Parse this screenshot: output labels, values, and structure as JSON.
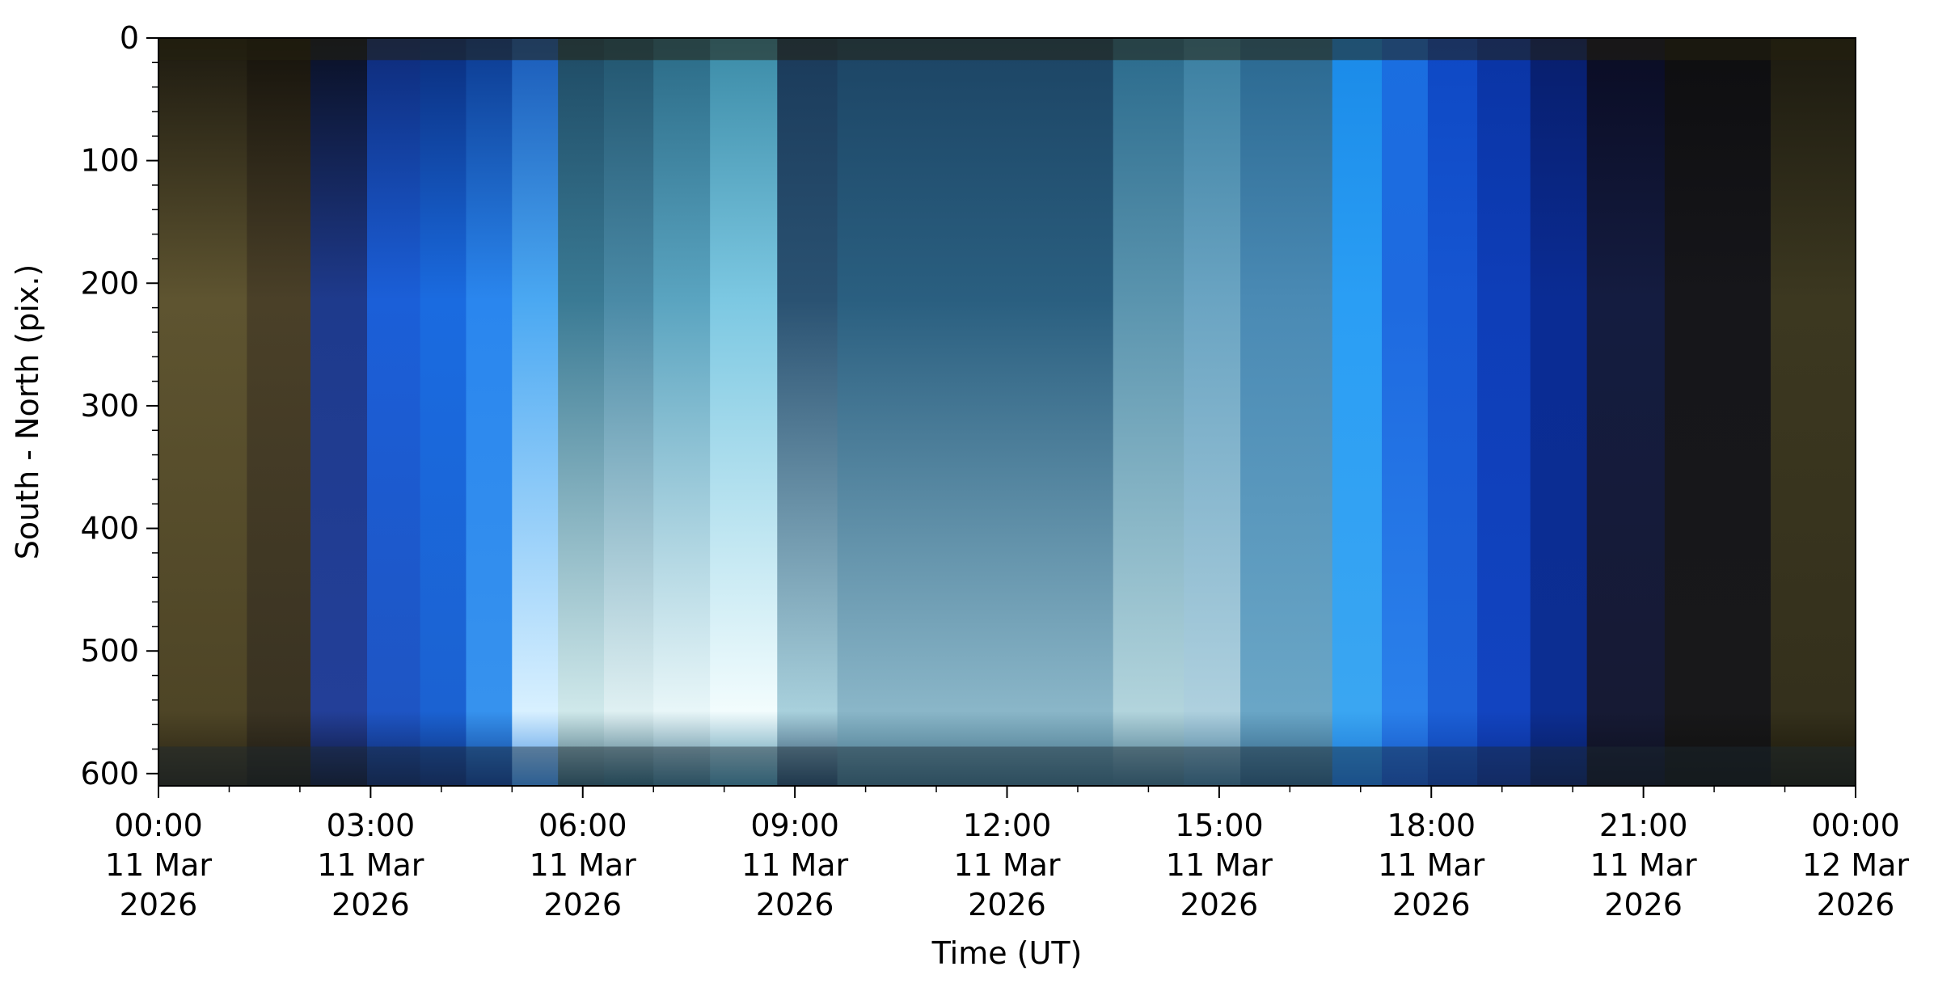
{
  "chart_data": {
    "type": "heatmap",
    "title": "",
    "xlabel": "Time (UT)",
    "ylabel": "South - North (pix.)",
    "x_range_hours_ut": [
      0,
      24
    ],
    "ylim": [
      0,
      610
    ],
    "y_inverted": true,
    "grid": false,
    "legend": "none",
    "x_major_ticks": [
      {
        "hour": 0,
        "time": "00:00",
        "date": "11 Mar",
        "year": "2026"
      },
      {
        "hour": 3,
        "time": "03:00",
        "date": "11 Mar",
        "year": "2026"
      },
      {
        "hour": 6,
        "time": "06:00",
        "date": "11 Mar",
        "year": "2026"
      },
      {
        "hour": 9,
        "time": "09:00",
        "date": "11 Mar",
        "year": "2026"
      },
      {
        "hour": 12,
        "time": "12:00",
        "date": "11 Mar",
        "year": "2026"
      },
      {
        "hour": 15,
        "time": "15:00",
        "date": "11 Mar",
        "year": "2026"
      },
      {
        "hour": 18,
        "time": "18:00",
        "date": "11 Mar",
        "year": "2026"
      },
      {
        "hour": 21,
        "time": "21:00",
        "date": "11 Mar",
        "year": "2026"
      },
      {
        "hour": 24,
        "time": "00:00",
        "date": "12 Mar",
        "year": "2026"
      }
    ],
    "x_minor_tick_hours": [
      1,
      2,
      4,
      5,
      7,
      8,
      10,
      11,
      13,
      14,
      16,
      17,
      19,
      20,
      22,
      23
    ],
    "y_major_ticks": [
      0,
      100,
      200,
      300,
      400,
      500,
      600
    ],
    "y_minor_tick_step": 20,
    "keogram_segments": [
      {
        "start_hour": 0.0,
        "end_hour": 1.25,
        "colors": [
          "#1d1a10",
          "#5e5430",
          "#4e4526",
          "#241f12"
        ]
      },
      {
        "start_hour": 1.25,
        "end_hour": 2.15,
        "colors": [
          "#16130c",
          "#4a4028",
          "#3a3322",
          "#1a1710"
        ]
      },
      {
        "start_hour": 2.15,
        "end_hour": 2.95,
        "colors": [
          "#0a1024",
          "#1e3a8c",
          "#233f98",
          "#0c1430"
        ]
      },
      {
        "start_hour": 2.95,
        "end_hour": 3.7,
        "colors": [
          "#0e2a78",
          "#1b5fd8",
          "#1e55c4",
          "#0c2460"
        ]
      },
      {
        "start_hour": 3.7,
        "end_hour": 4.35,
        "colors": [
          "#0a2d7c",
          "#1a6be0",
          "#1b62d2",
          "#0c2a70"
        ]
      },
      {
        "start_hour": 4.35,
        "end_hour": 5.0,
        "colors": [
          "#0c3a90",
          "#2a86ee",
          "#3692ee",
          "#0e3a8c"
        ]
      },
      {
        "start_hour": 5.0,
        "end_hour": 5.65,
        "colors": [
          "#1a5ab8",
          "#4aa8f2",
          "#d8f0ff",
          "#3a8ae0"
        ]
      },
      {
        "start_hour": 5.65,
        "end_hour": 6.3,
        "colors": [
          "#1e4a64",
          "#3a7a94",
          "#cfe8ea",
          "#2e5a6c"
        ]
      },
      {
        "start_hour": 6.3,
        "end_hour": 7.0,
        "colors": [
          "#21546e",
          "#4a8aa6",
          "#dff0f2",
          "#2a5e72"
        ]
      },
      {
        "start_hour": 7.0,
        "end_hour": 7.8,
        "colors": [
          "#2a6a86",
          "#5aa4c0",
          "#e8f6f8",
          "#356e86"
        ]
      },
      {
        "start_hour": 7.8,
        "end_hour": 8.75,
        "colors": [
          "#3a8aa6",
          "#7cc8e2",
          "#f2fcfd",
          "#4088a4"
        ]
      },
      {
        "start_hour": 8.75,
        "end_hour": 9.6,
        "colors": [
          "#1a3a5a",
          "#2a5272",
          "#a8d0dc",
          "#224462"
        ]
      },
      {
        "start_hour": 9.6,
        "end_hour": 13.5,
        "colors": [
          "#1c4464",
          "#2a5f80",
          "#8ab6c8",
          "#3a6a80"
        ]
      },
      {
        "start_hour": 13.5,
        "end_hour": 14.5,
        "colors": [
          "#2a6a8c",
          "#5a94ae",
          "#b2d4dc",
          "#3a6a82"
        ]
      },
      {
        "start_hour": 14.5,
        "end_hour": 15.3,
        "colors": [
          "#3a7ea0",
          "#6aa4c2",
          "#aed0de",
          "#3a7090"
        ]
      },
      {
        "start_hour": 15.3,
        "end_hour": 16.6,
        "colors": [
          "#2a6890",
          "#4a8ab4",
          "#6aa6c6",
          "#2a5a7c"
        ]
      },
      {
        "start_hour": 16.6,
        "end_hour": 17.3,
        "colors": [
          "#1a8ae8",
          "#2a9ef4",
          "#3aa6f2",
          "#1a70d0"
        ]
      },
      {
        "start_hour": 17.3,
        "end_hour": 17.95,
        "colors": [
          "#1a6ee0",
          "#1e6ae0",
          "#2a80ea",
          "#1450c0"
        ]
      },
      {
        "start_hour": 17.95,
        "end_hour": 18.65,
        "colors": [
          "#0e48c4",
          "#1656d2",
          "#1c60d6",
          "#0c3ca8"
        ]
      },
      {
        "start_hour": 18.65,
        "end_hour": 19.4,
        "colors": [
          "#0a34a4",
          "#0e3eb8",
          "#1244c0",
          "#0a2c8c"
        ]
      },
      {
        "start_hour": 19.4,
        "end_hour": 20.2,
        "colors": [
          "#081e6c",
          "#0a2c94",
          "#0c2e92",
          "#081c5c"
        ]
      },
      {
        "start_hour": 20.2,
        "end_hour": 21.3,
        "colors": [
          "#0a0c24",
          "#141c40",
          "#161a34",
          "#0c0e1c"
        ]
      },
      {
        "start_hour": 21.3,
        "end_hour": 22.8,
        "colors": [
          "#0e0e10",
          "#16161a",
          "#18181a",
          "#0e0e0c"
        ]
      },
      {
        "start_hour": 22.8,
        "end_hour": 24.0,
        "colors": [
          "#1c1a10",
          "#3c3820",
          "#34301c",
          "#181508"
        ]
      }
    ],
    "colors": {
      "top_band": "#25200f",
      "bottom_band": "#1c2a34",
      "frame": "#000000"
    }
  }
}
